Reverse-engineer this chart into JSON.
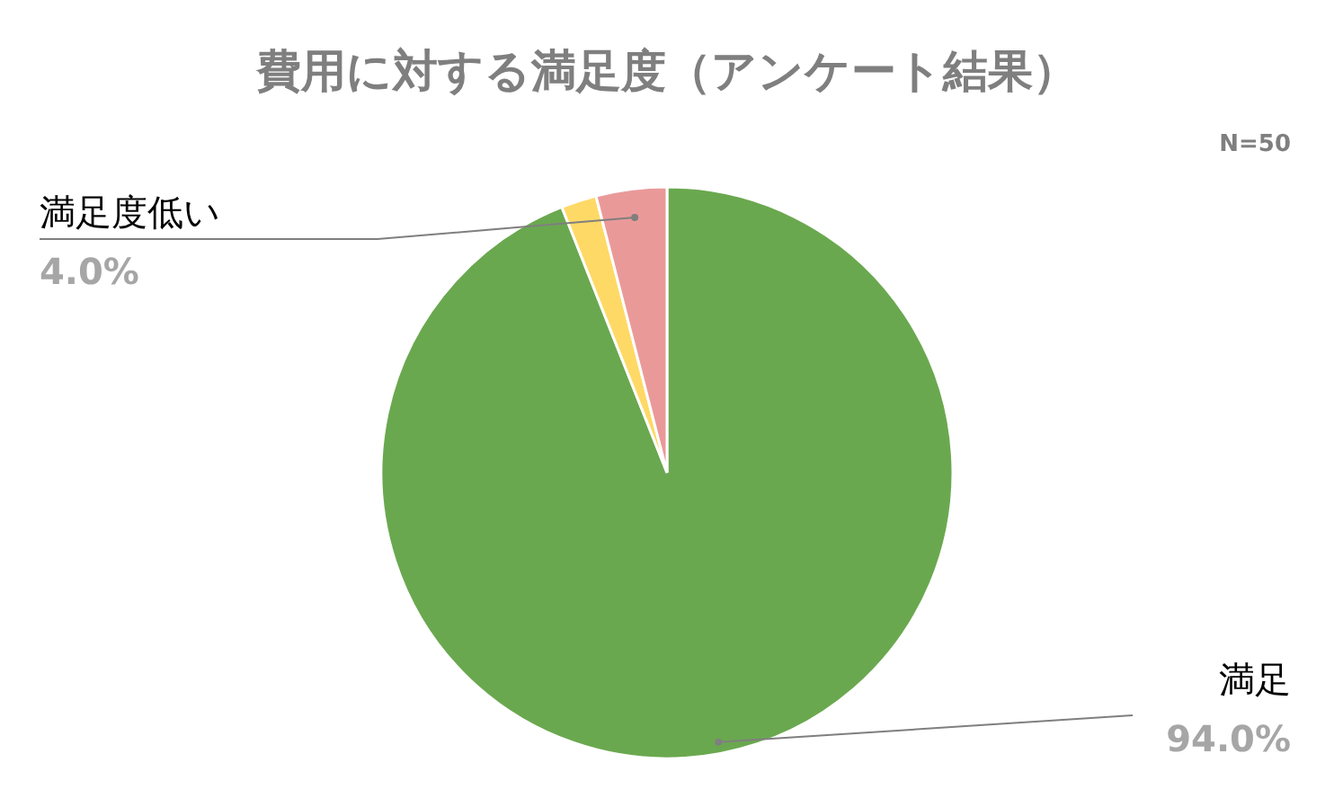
{
  "chart_data": {
    "type": "pie",
    "title": "費用に対する満足度（アンケート結果）",
    "categories": [
      "満足",
      null,
      "満足度低い"
    ],
    "values": [
      94,
      2,
      4
    ],
    "colors": [
      "#6aa84f",
      "#ffd966",
      "#ea9999"
    ],
    "value_labels": [
      "94.0%",
      null,
      "4.0%"
    ],
    "annotations": [
      "N=50"
    ]
  }
}
